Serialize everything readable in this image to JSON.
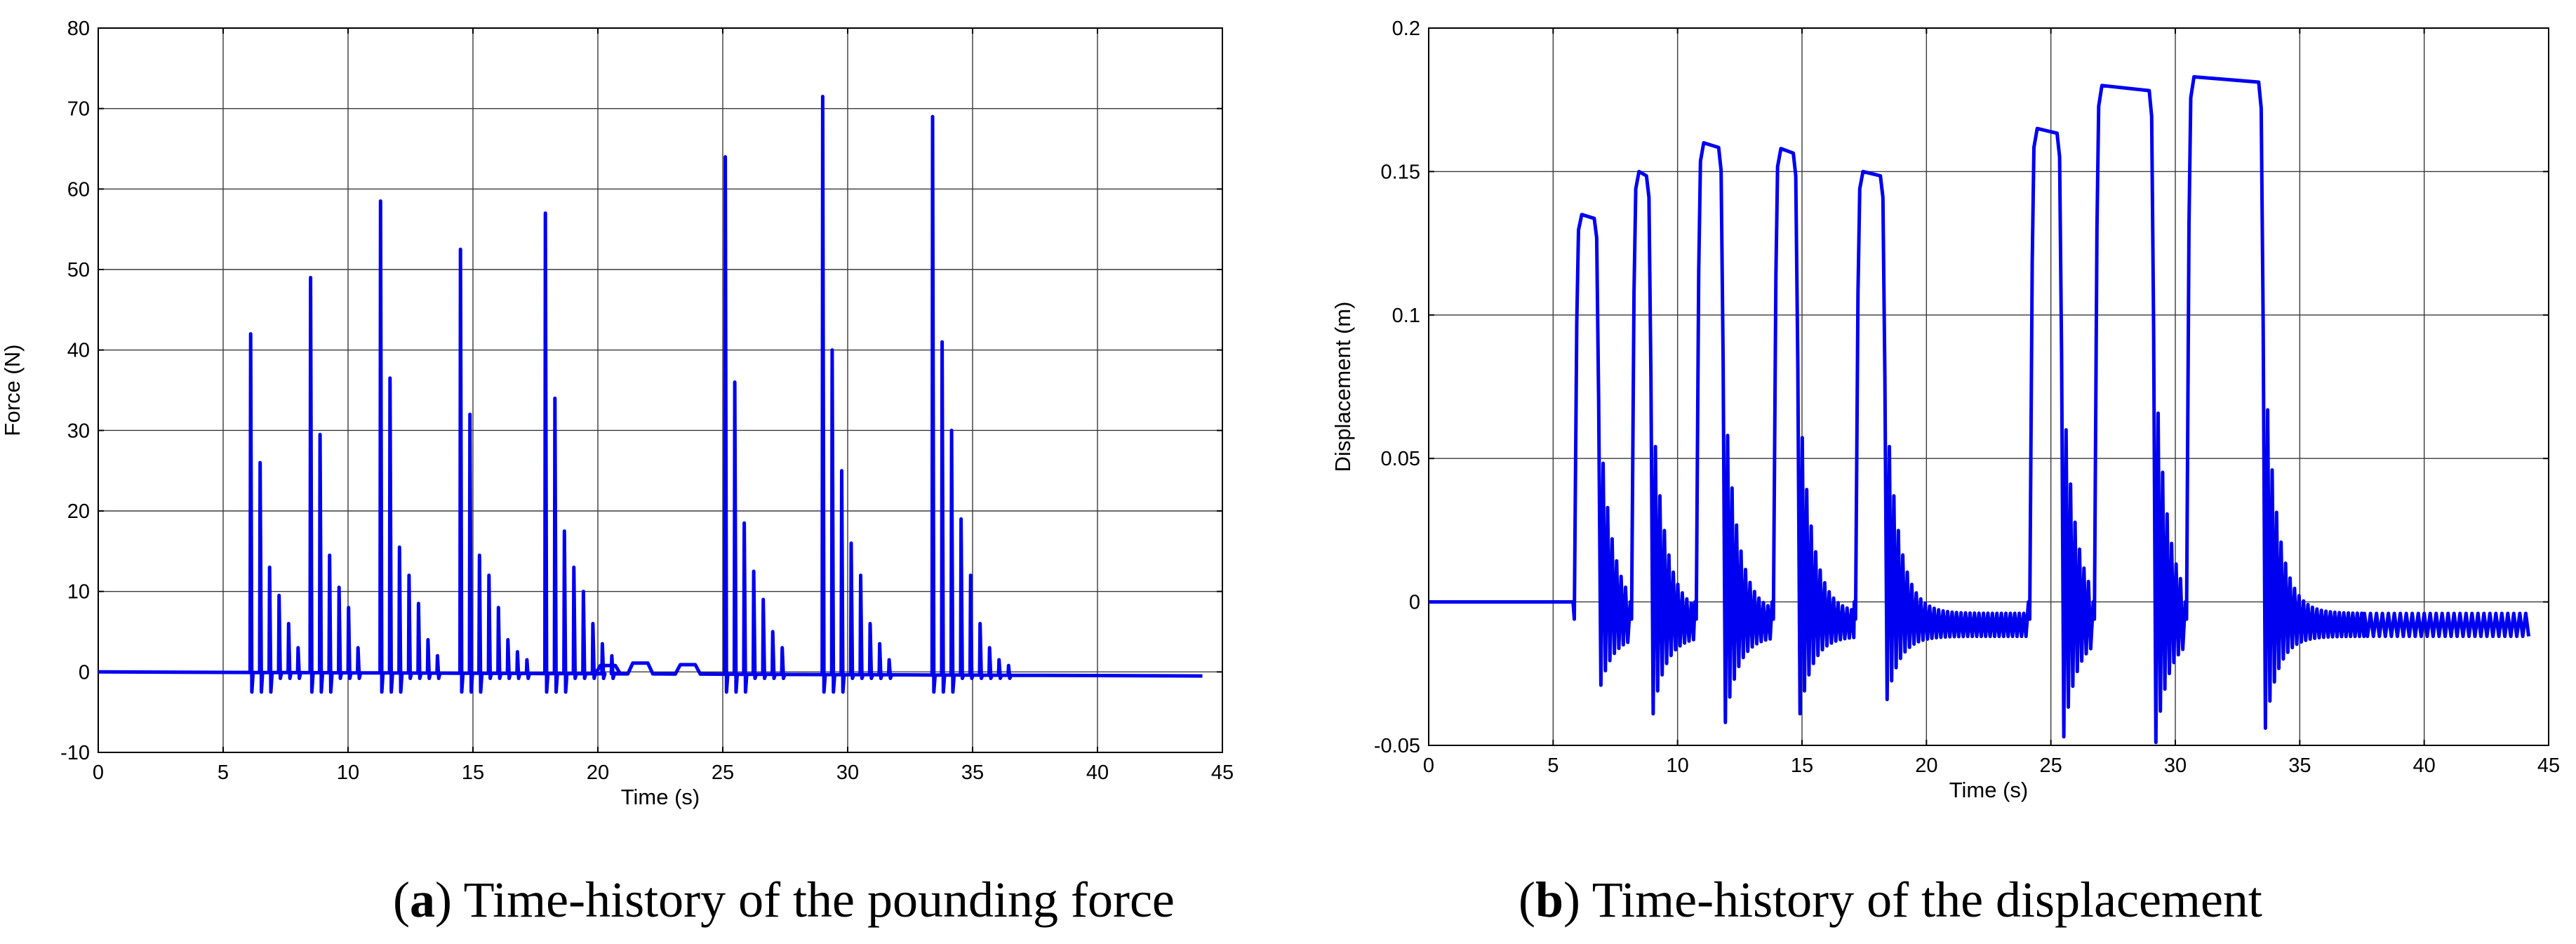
{
  "chart_data": [
    {
      "type": "line",
      "panel": "a",
      "caption_letter": "a",
      "caption_text": "Time-history of the pounding force",
      "title": "",
      "xlabel": "Time (s)",
      "ylabel": "Force (N)",
      "xlim": [
        0,
        45
      ],
      "ylim": [
        -10,
        80
      ],
      "xticks": [
        0,
        5,
        10,
        15,
        20,
        25,
        30,
        35,
        40,
        45
      ],
      "yticks": [
        -10,
        0,
        10,
        20,
        30,
        40,
        50,
        60,
        70,
        80
      ],
      "grid": true,
      "color": "#0000f0",
      "baseline": {
        "start": [
          0,
          0
        ],
        "end": [
          44.2,
          -0.5
        ]
      },
      "events": [
        {
          "t": 6.1,
          "peaks": [
            42,
            26,
            13,
            9.5,
            6,
            3
          ]
        },
        {
          "t": 8.5,
          "peaks": [
            49,
            29.5,
            14.5,
            10.5,
            8,
            3
          ]
        },
        {
          "t": 11.3,
          "peaks": [
            58.5,
            36.5,
            15.5,
            12,
            8.5,
            4,
            2
          ]
        },
        {
          "t": 14.5,
          "peaks": [
            52.5,
            32,
            14.5,
            12,
            8,
            4,
            2.5,
            1.5
          ]
        },
        {
          "t": 17.9,
          "peaks": [
            57,
            34,
            17.5,
            13,
            10,
            6,
            3.5,
            2
          ]
        },
        {
          "t": 25.1,
          "peaks": [
            64,
            36,
            18.5,
            12.5,
            9,
            5,
            3
          ]
        },
        {
          "t": 29,
          "peaks": [
            71.5,
            40,
            25,
            16,
            12,
            6,
            3.5,
            1.5
          ]
        },
        {
          "t": 33.4,
          "peaks": [
            69,
            41,
            30,
            19,
            12,
            6,
            3,
            1.5,
            0.8
          ]
        }
      ],
      "minor_bumps": [
        {
          "t": 20.4,
          "value": 0.8
        },
        {
          "t": 21.7,
          "value": 1.1
        },
        {
          "t": 23.6,
          "value": 0.9
        }
      ]
    },
    {
      "type": "line",
      "panel": "b",
      "caption_letter": "b",
      "caption_text": "Time-history of the displacement",
      "title": "",
      "xlabel": "Time (s)",
      "ylabel": "Displacement (m)",
      "xlim": [
        0,
        45
      ],
      "ylim": [
        -0.05,
        0.2
      ],
      "xticks": [
        0,
        5,
        10,
        15,
        20,
        25,
        30,
        35,
        40,
        45
      ],
      "yticks": [
        -0.05,
        0,
        0.05,
        0.1,
        0.15,
        0.2
      ],
      "ytick_labels": [
        "-0.05",
        "0",
        "0.05",
        "0.1",
        "0.15",
        "0.2"
      ],
      "grid": true,
      "color": "#0000f0",
      "pre_event_value": 0,
      "post_event_mean": -0.008,
      "post_event_amplitude": 0.004,
      "events": [
        {
          "t_rise": 5.9,
          "plateau": 0.135,
          "duration": 0.6,
          "first_min": -0.025
        },
        {
          "t_rise": 8.2,
          "plateau": 0.15,
          "duration": 0.4,
          "first_min": -0.035
        },
        {
          "t_rise": 10.8,
          "plateau": 0.16,
          "duration": 0.7,
          "first_min": -0.038
        },
        {
          "t_rise": 13.9,
          "plateau": 0.158,
          "duration": 0.6,
          "first_min": -0.035
        },
        {
          "t_rise": 17.2,
          "plateau": 0.15,
          "duration": 0.8,
          "first_min": -0.03
        },
        {
          "t_rise": 24.2,
          "plateau": 0.165,
          "duration": 0.9,
          "first_min": -0.043
        },
        {
          "t_rise": 26.8,
          "plateau": 0.18,
          "duration": 2.0,
          "first_min": -0.045
        },
        {
          "t_rise": 30.5,
          "plateau": 0.183,
          "duration": 2.7,
          "first_min": -0.04
        }
      ]
    }
  ]
}
